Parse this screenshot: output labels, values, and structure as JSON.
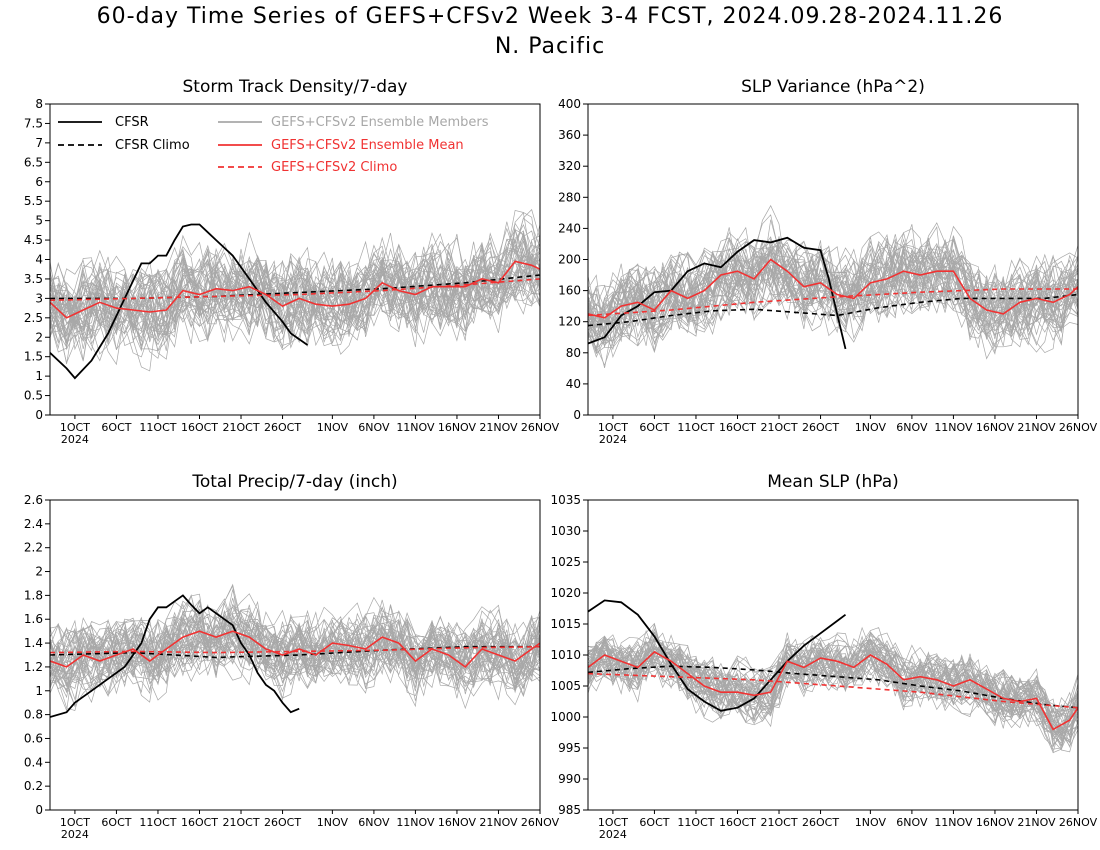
{
  "page": {
    "title": "60-day Time Series of GEFS+CFSv2 Week 3-4 FCST, 2024.09.28-2024.11.26",
    "region": "N. Pacific"
  },
  "colors": {
    "cfsr": "#000000",
    "members": "#a8a8a8",
    "ensmean": "#f03232"
  },
  "x_axis": {
    "tick_labels": [
      "1OCT",
      "6OCT",
      "11OCT",
      "16OCT",
      "21OCT",
      "26OCT",
      "1NOV",
      "6NOV",
      "11NOV",
      "16NOV",
      "21NOV",
      "26NOV"
    ],
    "tick_days": [
      3,
      8,
      13,
      18,
      23,
      28,
      34,
      39,
      44,
      49,
      54,
      59
    ],
    "year_label": "2024",
    "day_range": [
      0,
      59
    ]
  },
  "legend": {
    "cfsr": "CFSR",
    "cfsr_climo": "CFSR Climo",
    "members": "GEFS+CFSv2 Ensemble Members",
    "ensmean": "GEFS+CFSv2 Ensemble Mean",
    "ensclimo": "GEFS+CFSv2 Climo"
  },
  "chart_data": [
    {
      "type": "line",
      "title": "Storm Track Density/7-day",
      "ylim": [
        0,
        8
      ],
      "yticks": [
        "0",
        "0.5",
        "1",
        "1.5",
        "2",
        "2.5",
        "3",
        "3.5",
        "4",
        "4.5",
        "5",
        "5.5",
        "6",
        "6.5",
        "7",
        "7.5",
        "8"
      ],
      "ytick_values": [
        0,
        0.5,
        1,
        1.5,
        2,
        2.5,
        3,
        3.5,
        4,
        4.5,
        5,
        5.5,
        6,
        6.5,
        7,
        7.5,
        8
      ],
      "members_band": {
        "center_offset_from_mean": 0,
        "spread": 1.3
      },
      "series": [
        {
          "name": "CFSR",
          "x": [
            0,
            2,
            3,
            5,
            7,
            9,
            11,
            12,
            13,
            14,
            15,
            16,
            17,
            18,
            19,
            20,
            22,
            24,
            26,
            28,
            29,
            31
          ],
          "y": [
            1.6,
            1.2,
            0.95,
            1.4,
            2.1,
            3.0,
            3.9,
            3.9,
            4.1,
            4.1,
            4.5,
            4.85,
            4.9,
            4.9,
            4.7,
            4.5,
            4.1,
            3.5,
            2.9,
            2.4,
            2.1,
            1.8
          ]
        },
        {
          "name": "CFSR Climo",
          "x": [
            0,
            10,
            20,
            30,
            40,
            50,
            59
          ],
          "y": [
            3.0,
            3.0,
            3.05,
            3.15,
            3.25,
            3.4,
            3.6
          ]
        },
        {
          "name": "GEFS+CFSv2 Ensemble Mean",
          "x": [
            0,
            2,
            4,
            6,
            8,
            10,
            12,
            14,
            16,
            18,
            20,
            22,
            24,
            26,
            28,
            30,
            32,
            34,
            36,
            38,
            40,
            42,
            44,
            46,
            48,
            50,
            52,
            54,
            56,
            58,
            59
          ],
          "y": [
            2.9,
            2.5,
            2.7,
            2.9,
            2.75,
            2.7,
            2.65,
            2.7,
            3.2,
            3.1,
            3.25,
            3.2,
            3.3,
            3.1,
            2.8,
            3.0,
            2.85,
            2.8,
            2.85,
            3.0,
            3.4,
            3.2,
            3.1,
            3.3,
            3.3,
            3.3,
            3.5,
            3.4,
            3.95,
            3.85,
            3.75
          ]
        },
        {
          "name": "GEFS+CFSv2 Climo",
          "x": [
            0,
            10,
            20,
            30,
            40,
            50,
            59
          ],
          "y": [
            2.95,
            3.0,
            3.05,
            3.1,
            3.2,
            3.35,
            3.5
          ]
        }
      ]
    },
    {
      "type": "line",
      "title": "SLP Variance (hPa^2)",
      "ylim": [
        0,
        400
      ],
      "yticks": [
        "0",
        "40",
        "80",
        "120",
        "160",
        "200",
        "240",
        "280",
        "320",
        "360",
        "400"
      ],
      "ytick_values": [
        0,
        40,
        80,
        120,
        160,
        200,
        240,
        280,
        320,
        360,
        400
      ],
      "members_band": {
        "center_offset_from_mean": 0,
        "spread": 60
      },
      "series": [
        {
          "name": "CFSR",
          "x": [
            0,
            2,
            4,
            6,
            8,
            10,
            12,
            14,
            16,
            18,
            20,
            22,
            24,
            26,
            28,
            29,
            31
          ],
          "y": [
            92,
            100,
            128,
            140,
            158,
            160,
            185,
            195,
            190,
            210,
            225,
            222,
            228,
            215,
            212,
            175,
            85
          ]
        },
        {
          "name": "CFSR Climo",
          "x": [
            0,
            5,
            10,
            15,
            20,
            25,
            30,
            35,
            40,
            45,
            50,
            55,
            59
          ],
          "y": [
            115,
            120,
            128,
            134,
            136,
            132,
            128,
            138,
            145,
            150,
            150,
            150,
            155
          ]
        },
        {
          "name": "GEFS+CFSv2 Ensemble Mean",
          "x": [
            0,
            2,
            4,
            6,
            8,
            10,
            12,
            14,
            16,
            18,
            20,
            22,
            24,
            26,
            28,
            30,
            32,
            34,
            36,
            38,
            40,
            42,
            44,
            46,
            48,
            50,
            52,
            54,
            56,
            58,
            59
          ],
          "y": [
            130,
            125,
            140,
            145,
            135,
            160,
            150,
            160,
            180,
            185,
            175,
            200,
            185,
            165,
            170,
            155,
            150,
            170,
            175,
            185,
            180,
            185,
            185,
            150,
            135,
            130,
            145,
            150,
            145,
            155,
            165
          ]
        },
        {
          "name": "GEFS+CFSv2 Climo",
          "x": [
            0,
            10,
            20,
            30,
            40,
            50,
            59
          ],
          "y": [
            128,
            135,
            145,
            152,
            158,
            162,
            162
          ]
        }
      ]
    },
    {
      "type": "line",
      "title": "Total Precip/7-day (inch)",
      "ylim": [
        0,
        2.6
      ],
      "yticks": [
        "0",
        "0.2",
        "0.4",
        "0.6",
        "0.8",
        "1",
        "1.2",
        "1.4",
        "1.6",
        "1.8",
        "2",
        "2.2",
        "2.4",
        "2.6"
      ],
      "ytick_values": [
        0,
        0.2,
        0.4,
        0.6,
        0.8,
        1,
        1.2,
        1.4,
        1.6,
        1.8,
        2,
        2.2,
        2.4,
        2.6
      ],
      "members_band": {
        "center_offset_from_mean": 0,
        "spread": 0.35
      },
      "series": [
        {
          "name": "CFSR",
          "x": [
            0,
            2,
            3,
            5,
            7,
            9,
            11,
            12,
            13,
            14,
            15,
            16,
            17,
            18,
            19,
            20,
            22,
            23,
            24,
            25,
            26,
            27,
            28,
            29,
            30
          ],
          "y": [
            0.78,
            0.82,
            0.9,
            1.0,
            1.1,
            1.2,
            1.4,
            1.6,
            1.7,
            1.7,
            1.75,
            1.8,
            1.72,
            1.65,
            1.7,
            1.65,
            1.55,
            1.4,
            1.3,
            1.15,
            1.05,
            1.0,
            0.9,
            0.82,
            0.85
          ]
        },
        {
          "name": "CFSR Climo",
          "x": [
            0,
            10,
            20,
            30,
            40,
            50,
            59
          ],
          "y": [
            1.3,
            1.32,
            1.28,
            1.3,
            1.34,
            1.37,
            1.37
          ]
        },
        {
          "name": "GEFS+CFSv2 Climo",
          "x": [
            0,
            10,
            20,
            30,
            40,
            50,
            59
          ],
          "y": [
            1.32,
            1.33,
            1.32,
            1.33,
            1.34,
            1.36,
            1.37
          ]
        },
        {
          "name": "GEFS+CFSv2 Ensemble Mean",
          "x": [
            0,
            2,
            4,
            6,
            8,
            10,
            12,
            14,
            16,
            18,
            20,
            22,
            24,
            26,
            28,
            30,
            32,
            34,
            36,
            38,
            40,
            42,
            44,
            46,
            48,
            50,
            52,
            54,
            56,
            58,
            59
          ],
          "y": [
            1.25,
            1.2,
            1.3,
            1.25,
            1.3,
            1.35,
            1.25,
            1.35,
            1.45,
            1.5,
            1.45,
            1.5,
            1.45,
            1.35,
            1.3,
            1.35,
            1.3,
            1.4,
            1.38,
            1.35,
            1.45,
            1.4,
            1.25,
            1.35,
            1.3,
            1.2,
            1.35,
            1.3,
            1.25,
            1.35,
            1.4
          ]
        }
      ]
    },
    {
      "type": "line",
      "title": "Mean SLP (hPa)",
      "ylim": [
        985,
        1035
      ],
      "yticks": [
        "985",
        "990",
        "995",
        "1000",
        "1005",
        "1010",
        "1015",
        "1020",
        "1025",
        "1030",
        "1035"
      ],
      "ytick_values": [
        985,
        990,
        995,
        1000,
        1005,
        1010,
        1015,
        1020,
        1025,
        1030,
        1035
      ],
      "members_band": {
        "center_offset_from_mean": 0,
        "spread": 5
      },
      "series": [
        {
          "name": "CFSR",
          "x": [
            0,
            2,
            4,
            6,
            8,
            10,
            12,
            14,
            16,
            18,
            20,
            22,
            24,
            26,
            28,
            30,
            31
          ],
          "y": [
            1017,
            1018.8,
            1018.5,
            1016.5,
            1013,
            1008.5,
            1004.5,
            1002.5,
            1001,
            1001.5,
            1003,
            1006,
            1009,
            1011.5,
            1013.5,
            1015.5,
            1016.5
          ]
        },
        {
          "name": "CFSR Climo",
          "x": [
            0,
            5,
            10,
            15,
            20,
            25,
            30,
            35,
            40,
            45,
            50,
            55,
            59
          ],
          "y": [
            1007.2,
            1007.8,
            1008.2,
            1008,
            1007.6,
            1007,
            1006.5,
            1006,
            1005,
            1004.2,
            1003,
            1002,
            1001.5
          ]
        },
        {
          "name": "GEFS+CFSv2 Ensemble Mean",
          "x": [
            0,
            2,
            4,
            6,
            8,
            10,
            12,
            14,
            16,
            18,
            20,
            22,
            24,
            26,
            28,
            30,
            32,
            34,
            36,
            38,
            40,
            42,
            44,
            46,
            48,
            50,
            52,
            54,
            56,
            58,
            59
          ],
          "y": [
            1008,
            1010,
            1009,
            1008,
            1010.5,
            1009,
            1007,
            1005,
            1004,
            1004,
            1003.5,
            1004,
            1009,
            1008,
            1009.5,
            1009,
            1008,
            1010,
            1008.5,
            1006,
            1006.5,
            1006,
            1005,
            1006,
            1004.5,
            1003,
            1002.5,
            1003,
            998,
            999.5,
            1001.5
          ]
        },
        {
          "name": "GEFS+CFSv2 Climo",
          "x": [
            0,
            10,
            20,
            30,
            40,
            50,
            59
          ],
          "y": [
            1007,
            1006.5,
            1006,
            1005,
            1004,
            1002.5,
            1001.5
          ]
        }
      ]
    }
  ]
}
